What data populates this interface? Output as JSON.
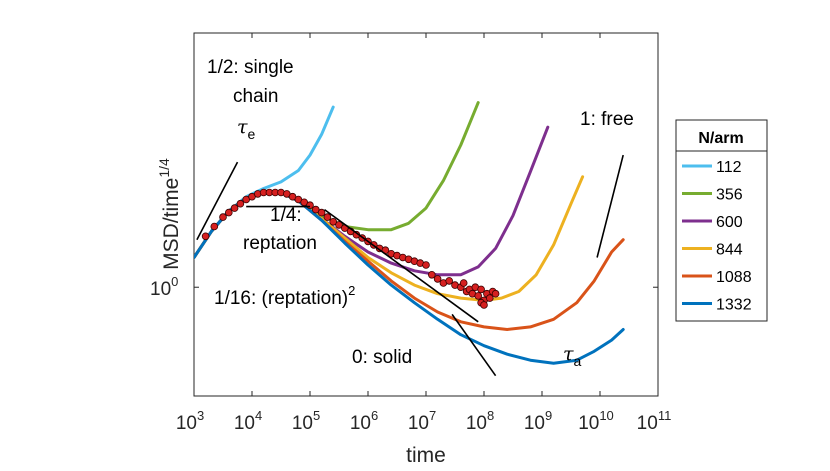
{
  "chart_data": {
    "type": "line",
    "xscale": "log",
    "yscale": "log",
    "xlabel": "time",
    "ylabel": "MSD/time",
    "ylabel_exponent": "1/4",
    "xlim": [
      1000,
      100000000000
    ],
    "ylim": [
      0.6,
      3.3
    ],
    "x_ticks": [
      {
        "base": "10",
        "exp": "3"
      },
      {
        "base": "10",
        "exp": "4"
      },
      {
        "base": "10",
        "exp": "5"
      },
      {
        "base": "10",
        "exp": "6"
      },
      {
        "base": "10",
        "exp": "7"
      },
      {
        "base": "10",
        "exp": "8"
      },
      {
        "base": "10",
        "exp": "9"
      },
      {
        "base": "10",
        "exp": "10"
      },
      {
        "base": "10",
        "exp": "11"
      }
    ],
    "y_ticks": [
      {
        "base": "10",
        "exp": "0"
      }
    ],
    "legend": {
      "title": "N/arm",
      "position": "outside-right"
    },
    "series": [
      {
        "name": "112",
        "color": "#4DBEEE",
        "points": [
          [
            3,
            1.15
          ],
          [
            3.3,
            1.3
          ],
          [
            3.6,
            1.43
          ],
          [
            3.9,
            1.53
          ],
          [
            4.2,
            1.59
          ],
          [
            4.5,
            1.64
          ],
          [
            4.8,
            1.73
          ],
          [
            5.0,
            1.86
          ],
          [
            5.2,
            2.05
          ],
          [
            5.4,
            2.33
          ]
        ]
      },
      {
        "name": "356",
        "color": "#77AC30",
        "points": [
          [
            3,
            1.15
          ],
          [
            3.3,
            1.3
          ],
          [
            3.6,
            1.43
          ],
          [
            3.9,
            1.52
          ],
          [
            4.2,
            1.57
          ],
          [
            4.5,
            1.56
          ],
          [
            4.8,
            1.5
          ],
          [
            5.2,
            1.4
          ],
          [
            5.6,
            1.33
          ],
          [
            6.0,
            1.31
          ],
          [
            6.4,
            1.31
          ],
          [
            6.7,
            1.35
          ],
          [
            7.0,
            1.45
          ],
          [
            7.3,
            1.65
          ],
          [
            7.6,
            1.95
          ],
          [
            7.9,
            2.38
          ]
        ]
      },
      {
        "name": "600",
        "color": "#7E2F8E",
        "points": [
          [
            3,
            1.15
          ],
          [
            3.3,
            1.3
          ],
          [
            3.6,
            1.43
          ],
          [
            3.9,
            1.52
          ],
          [
            4.2,
            1.57
          ],
          [
            4.5,
            1.56
          ],
          [
            4.8,
            1.5
          ],
          [
            5.2,
            1.38
          ],
          [
            5.6,
            1.27
          ],
          [
            6.0,
            1.18
          ],
          [
            6.4,
            1.12
          ],
          [
            6.8,
            1.08
          ],
          [
            7.2,
            1.06
          ],
          [
            7.6,
            1.06
          ],
          [
            7.9,
            1.1
          ],
          [
            8.2,
            1.2
          ],
          [
            8.5,
            1.4
          ],
          [
            8.8,
            1.72
          ],
          [
            9.1,
            2.12
          ]
        ]
      },
      {
        "name": "844",
        "color": "#EDB120",
        "points": [
          [
            3,
            1.15
          ],
          [
            3.3,
            1.3
          ],
          [
            3.6,
            1.43
          ],
          [
            3.9,
            1.52
          ],
          [
            4.2,
            1.57
          ],
          [
            4.5,
            1.56
          ],
          [
            4.8,
            1.5
          ],
          [
            5.2,
            1.38
          ],
          [
            5.6,
            1.26
          ],
          [
            6.0,
            1.15
          ],
          [
            6.4,
            1.07
          ],
          [
            6.8,
            1.01
          ],
          [
            7.2,
            0.97
          ],
          [
            7.6,
            0.95
          ],
          [
            8.0,
            0.94
          ],
          [
            8.3,
            0.95
          ],
          [
            8.6,
            0.98
          ],
          [
            8.9,
            1.06
          ],
          [
            9.2,
            1.22
          ],
          [
            9.5,
            1.48
          ],
          [
            9.7,
            1.68
          ]
        ]
      },
      {
        "name": "1088",
        "color": "#D95319",
        "points": [
          [
            3,
            1.15
          ],
          [
            3.3,
            1.3
          ],
          [
            3.6,
            1.43
          ],
          [
            3.9,
            1.52
          ],
          [
            4.2,
            1.57
          ],
          [
            4.5,
            1.56
          ],
          [
            4.8,
            1.5
          ],
          [
            5.2,
            1.37
          ],
          [
            5.6,
            1.24
          ],
          [
            6.0,
            1.13
          ],
          [
            6.4,
            1.03
          ],
          [
            6.8,
            0.95
          ],
          [
            7.2,
            0.89
          ],
          [
            7.6,
            0.85
          ],
          [
            8.0,
            0.83
          ],
          [
            8.4,
            0.82
          ],
          [
            8.8,
            0.83
          ],
          [
            9.2,
            0.86
          ],
          [
            9.6,
            0.93
          ],
          [
            9.9,
            1.03
          ],
          [
            10.2,
            1.18
          ],
          [
            10.4,
            1.25
          ]
        ]
      },
      {
        "name": "1332",
        "color": "#0072BD",
        "points": [
          [
            3,
            1.15
          ],
          [
            3.3,
            1.3
          ],
          [
            3.6,
            1.43
          ],
          [
            3.9,
            1.52
          ],
          [
            4.2,
            1.57
          ],
          [
            4.5,
            1.56
          ],
          [
            4.8,
            1.5
          ],
          [
            5.2,
            1.37
          ],
          [
            5.6,
            1.23
          ],
          [
            6.0,
            1.11
          ],
          [
            6.4,
            1.01
          ],
          [
            6.8,
            0.93
          ],
          [
            7.2,
            0.86
          ],
          [
            7.6,
            0.8
          ],
          [
            8.0,
            0.76
          ],
          [
            8.4,
            0.73
          ],
          [
            8.8,
            0.71
          ],
          [
            9.2,
            0.7
          ],
          [
            9.6,
            0.71
          ],
          [
            9.9,
            0.74
          ],
          [
            10.2,
            0.78
          ],
          [
            10.4,
            0.82
          ]
        ]
      }
    ],
    "markers": {
      "color": "#d62020",
      "edge": "#3a0000",
      "points": [
        [
          3.2,
          1.27
        ],
        [
          3.35,
          1.33
        ],
        [
          3.5,
          1.39
        ],
        [
          3.6,
          1.42
        ],
        [
          3.7,
          1.45
        ],
        [
          3.8,
          1.48
        ],
        [
          3.9,
          1.51
        ],
        [
          4.0,
          1.53
        ],
        [
          4.1,
          1.55
        ],
        [
          4.2,
          1.56
        ],
        [
          4.3,
          1.56
        ],
        [
          4.4,
          1.56
        ],
        [
          4.5,
          1.56
        ],
        [
          4.6,
          1.55
        ],
        [
          4.7,
          1.53
        ],
        [
          4.8,
          1.51
        ],
        [
          4.9,
          1.49
        ],
        [
          5.0,
          1.47
        ],
        [
          5.1,
          1.44
        ],
        [
          5.2,
          1.42
        ],
        [
          5.3,
          1.39
        ],
        [
          5.4,
          1.36
        ],
        [
          5.5,
          1.34
        ],
        [
          5.6,
          1.32
        ],
        [
          5.7,
          1.3
        ],
        [
          5.8,
          1.28
        ],
        [
          5.9,
          1.26
        ],
        [
          6.0,
          1.24
        ],
        [
          6.1,
          1.22
        ],
        [
          6.2,
          1.2
        ],
        [
          6.3,
          1.19
        ],
        [
          6.4,
          1.17
        ],
        [
          6.5,
          1.16
        ],
        [
          6.6,
          1.15
        ],
        [
          6.7,
          1.14
        ],
        [
          6.8,
          1.13
        ],
        [
          6.9,
          1.12
        ],
        [
          7.0,
          1.11
        ],
        [
          7.1,
          1.06
        ],
        [
          7.2,
          1.04
        ],
        [
          7.3,
          1.02
        ],
        [
          7.4,
          1.03
        ],
        [
          7.5,
          1.01
        ],
        [
          7.6,
          1.0
        ],
        [
          7.65,
          1.02
        ],
        [
          7.7,
          0.98
        ],
        [
          7.75,
          0.99
        ],
        [
          7.8,
          0.97
        ],
        [
          7.85,
          1.0
        ],
        [
          7.9,
          0.96
        ],
        [
          7.95,
          0.99
        ],
        [
          8.0,
          0.94
        ],
        [
          8.05,
          0.97
        ],
        [
          8.1,
          0.95
        ],
        [
          8.15,
          0.98
        ],
        [
          8.2,
          0.97
        ],
        [
          7.95,
          0.93
        ],
        [
          8.0,
          0.92
        ]
      ]
    },
    "reference_lines": [
      {
        "label": "1/2",
        "from": [
          3.05,
          1.25
        ],
        "to": [
          3.75,
          1.8
        ]
      },
      {
        "label": "1/4",
        "from": [
          3.9,
          1.46
        ],
        "to": [
          5.0,
          1.46
        ]
      },
      {
        "label": "1/16",
        "from": [
          5.25,
          1.44
        ],
        "to": [
          7.9,
          0.85
        ]
      },
      {
        "label": "0",
        "from": [
          7.45,
          0.88
        ],
        "to": [
          8.2,
          0.66
        ]
      },
      {
        "label": "1",
        "from": [
          9.95,
          1.15
        ],
        "to": [
          10.4,
          1.86
        ]
      }
    ],
    "annotations": [
      {
        "id": "half",
        "lines": [
          "1/2: single",
          "chain"
        ]
      },
      {
        "id": "tau-e",
        "symbol": "τ",
        "sub": "e"
      },
      {
        "id": "quarter",
        "lines": [
          "1/4:",
          "reptation"
        ]
      },
      {
        "id": "sixteenth",
        "text": "1/16: (reptation)",
        "sup": "2"
      },
      {
        "id": "zero",
        "text": "0: solid"
      },
      {
        "id": "tau-a",
        "symbol": "τ",
        "sub": "a"
      },
      {
        "id": "one",
        "text": "1: free"
      }
    ]
  }
}
